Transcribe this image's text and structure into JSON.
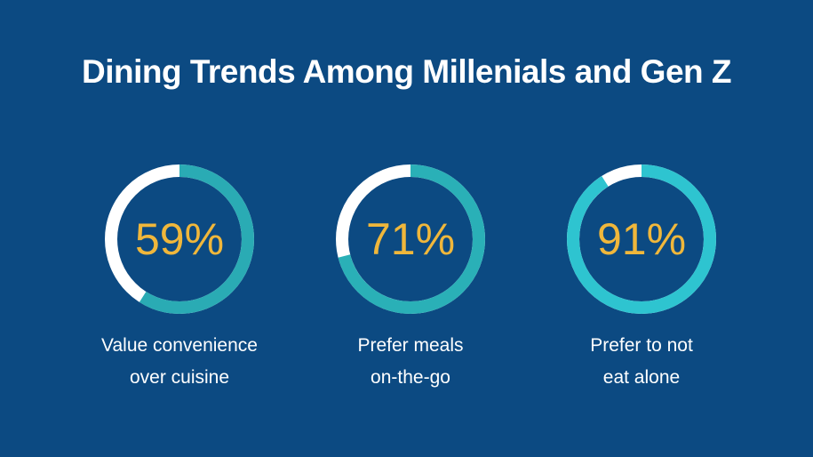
{
  "title": "Dining Trends Among Millenials and Gen Z",
  "colors": {
    "background": "#0c4a82",
    "track": "#ffffff",
    "value_text": "#f0b73b"
  },
  "chart_data": {
    "type": "pie",
    "variant": "donut-percentage",
    "title": "Dining Trends Among Millenials and Gen Z",
    "items": [
      {
        "label_lines": [
          "Value convenience",
          "over cuisine"
        ],
        "value": 59,
        "display": "59%",
        "color": "#2aabb4"
      },
      {
        "label_lines": [
          "Prefer meals",
          "on-the-go"
        ],
        "value": 71,
        "display": "71%",
        "color": "#2ab0b7"
      },
      {
        "label_lines": [
          "Prefer to not",
          "eat alone"
        ],
        "value": 91,
        "display": "91%",
        "color": "#2ec4d0"
      }
    ]
  }
}
